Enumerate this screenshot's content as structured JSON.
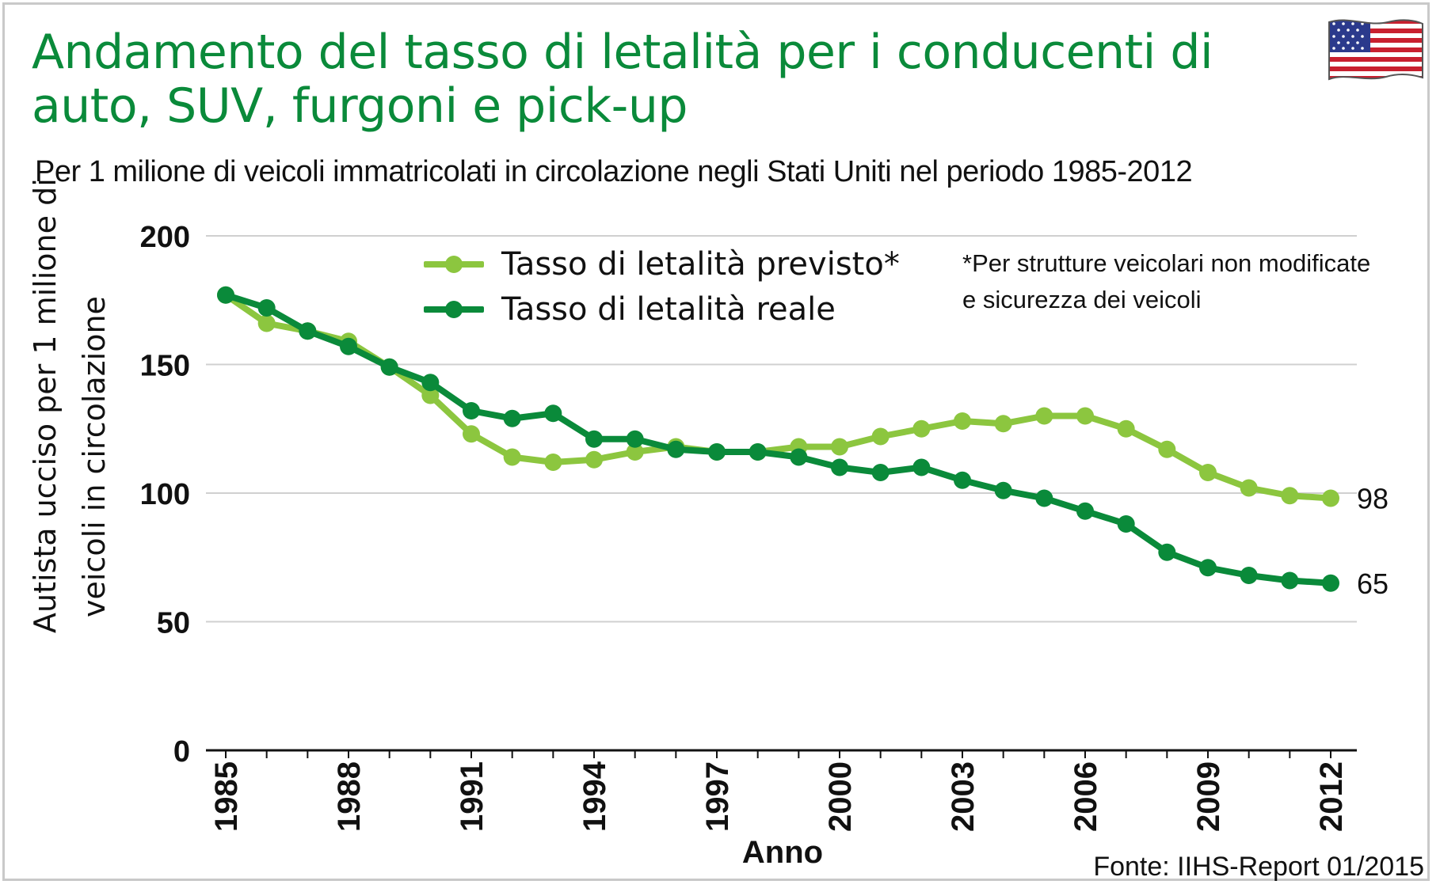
{
  "title": "Andamento del tasso di letalità per i conducenti di auto, SUV, furgoni e pick-up",
  "subtitle": "Per 1 milione di veicoli immatricolati in circolazione negli Stati Uniti nel periodo 1985-2012",
  "note": "*Per strutture veicolari non modificate e sicurezza dei veicoli",
  "source": "Fonte: IIHS-Report 01/2015",
  "flag_icon": "usa-flag-icon",
  "colors": {
    "title": "#0a8a3a",
    "expected": "#8cc63f",
    "actual": "#0a8a3a",
    "grid": "#d0d0d0",
    "axis": "#111111"
  },
  "chart_data": {
    "type": "line",
    "title": "Andamento del tasso di letalità per i conducenti di auto, SUV, furgoni e pick-up",
    "ylabel_lines": [
      "Autista ucciso per 1 milione di",
      "veicoli in circolazione"
    ],
    "xlabel": "Anno",
    "ylim": [
      0,
      200
    ],
    "yticks": [
      0,
      50,
      100,
      150,
      200
    ],
    "yticklabels": [
      "0",
      "50",
      "100",
      "150",
      "200"
    ],
    "xticks": [
      1985,
      1988,
      1991,
      1994,
      1997,
      2000,
      2003,
      2006,
      2009,
      2012
    ],
    "xticklabels": [
      "1985",
      "1988",
      "1991",
      "1994",
      "1997",
      "2000",
      "2003",
      "2006",
      "2009",
      "2012"
    ],
    "grid": true,
    "legend_position": "top-center",
    "x": [
      1985,
      1986,
      1987,
      1988,
      1989,
      1990,
      1991,
      1992,
      1993,
      1994,
      1995,
      1996,
      1997,
      1998,
      1999,
      2000,
      2001,
      2002,
      2003,
      2004,
      2005,
      2006,
      2007,
      2008,
      2009,
      2010,
      2011,
      2012
    ],
    "series": [
      {
        "name": "Tasso di letalità previsto*",
        "key": "expected",
        "values": [
          177,
          166,
          163,
          159,
          149,
          138,
          123,
          114,
          112,
          113,
          116,
          118,
          116,
          116,
          118,
          118,
          122,
          125,
          128,
          127,
          130,
          130,
          125,
          117,
          108,
          102,
          99,
          98
        ],
        "end_label": "98"
      },
      {
        "name": "Tasso di letalità reale",
        "key": "actual",
        "values": [
          177,
          172,
          163,
          157,
          149,
          143,
          132,
          129,
          131,
          121,
          121,
          117,
          116,
          116,
          114,
          110,
          108,
          110,
          105,
          101,
          98,
          93,
          88,
          77,
          71,
          68,
          66,
          65
        ],
        "end_label": "65"
      }
    ]
  }
}
